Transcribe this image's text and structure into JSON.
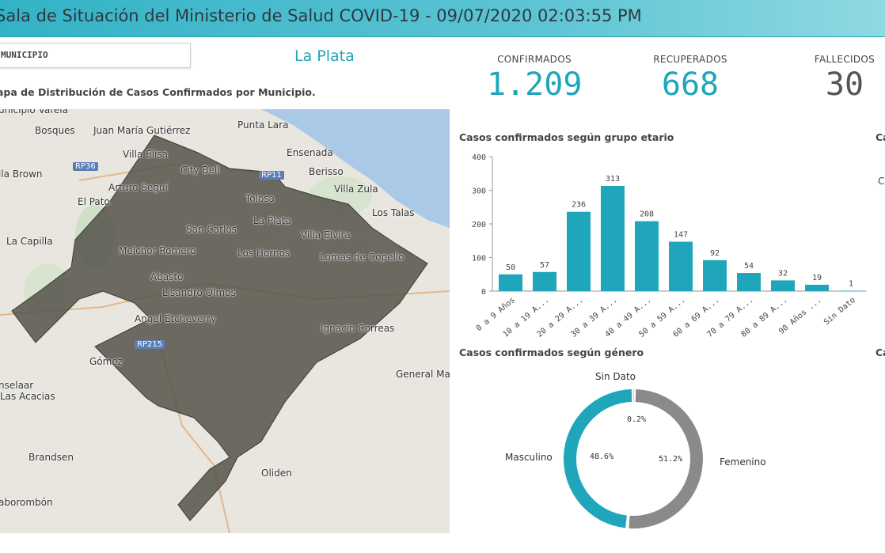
{
  "header": {
    "title": "Sala de Situación del Ministerio de Salud COVID-19 - 09/07/2020 02:03:55 PM"
  },
  "filter": {
    "label": "MUNICIPIO",
    "value": "La Plata"
  },
  "map": {
    "title": "apa de Distribución de Casos Confirmados por Municipio.",
    "labels": [
      "unicipio Varela",
      "Bosques",
      "Juan María Gutiérrez",
      "Punta Lara",
      "Ensenada",
      "Villa Elisa",
      "City Bell",
      "Berisso",
      "Villa Zula",
      "lla Brown",
      "Arturo Seguí",
      "El Pato",
      "Tolosa",
      "Los Talas",
      "La Plata",
      "San Carlos",
      "Villa Elvira",
      "La Capilla",
      "Melchor Romero",
      "Los Hornos",
      "Lomas de Copello",
      "Abasto",
      "Lisandro Olmos",
      "Angel Etcheverry",
      "Ignacio Correas",
      "Gómez",
      "General Ma",
      "nselaar",
      "Las Acacias",
      "Brandsen",
      "Oliden",
      "aborombón"
    ],
    "roads": [
      "RP36",
      "RP11",
      "RP215"
    ]
  },
  "kpis": [
    {
      "label": "CONFIRMADOS",
      "value": "1.209",
      "color": "#1fa6ba"
    },
    {
      "label": "RECUPERADOS",
      "value": "668",
      "color": "#1fa6ba"
    },
    {
      "label": "FALLECIDOS",
      "value": "30",
      "color": "#555555"
    }
  ],
  "charts": {
    "age": {
      "title": "Casos confirmados según grupo etario",
      "cut_title": "Ca",
      "cut_text": "C"
    },
    "gender": {
      "title": "Casos confirmados según género",
      "cut_title": "Ca"
    }
  },
  "chart_data": [
    {
      "type": "bar",
      "title": "Casos confirmados según grupo etario",
      "categories": [
        "0 a 9 Años",
        "10 a 19 A...",
        "20 a 29 A...",
        "30 a 39 A...",
        "40 a 49 A...",
        "50 a 59 A...",
        "60 a 69 A...",
        "70 a 79 A...",
        "80 a 89 A...",
        "90 Años ...",
        "Sin Dato"
      ],
      "values": [
        50,
        57,
        236,
        313,
        208,
        147,
        92,
        54,
        32,
        19,
        1
      ],
      "yticks": [
        0,
        100,
        200,
        300,
        400
      ],
      "ylim": [
        0,
        400
      ],
      "color": "#1fa6ba"
    },
    {
      "type": "pie",
      "title": "Casos confirmados según género",
      "labels": [
        "Sin Dato",
        "Femenino",
        "Masculino"
      ],
      "values": [
        0.2,
        51.2,
        48.6
      ],
      "pct_labels": [
        "0.2%",
        "51.2%",
        "48.6%"
      ],
      "colors": [
        "#c9c9c9",
        "#8a8a8a",
        "#1fa6ba"
      ]
    }
  ]
}
